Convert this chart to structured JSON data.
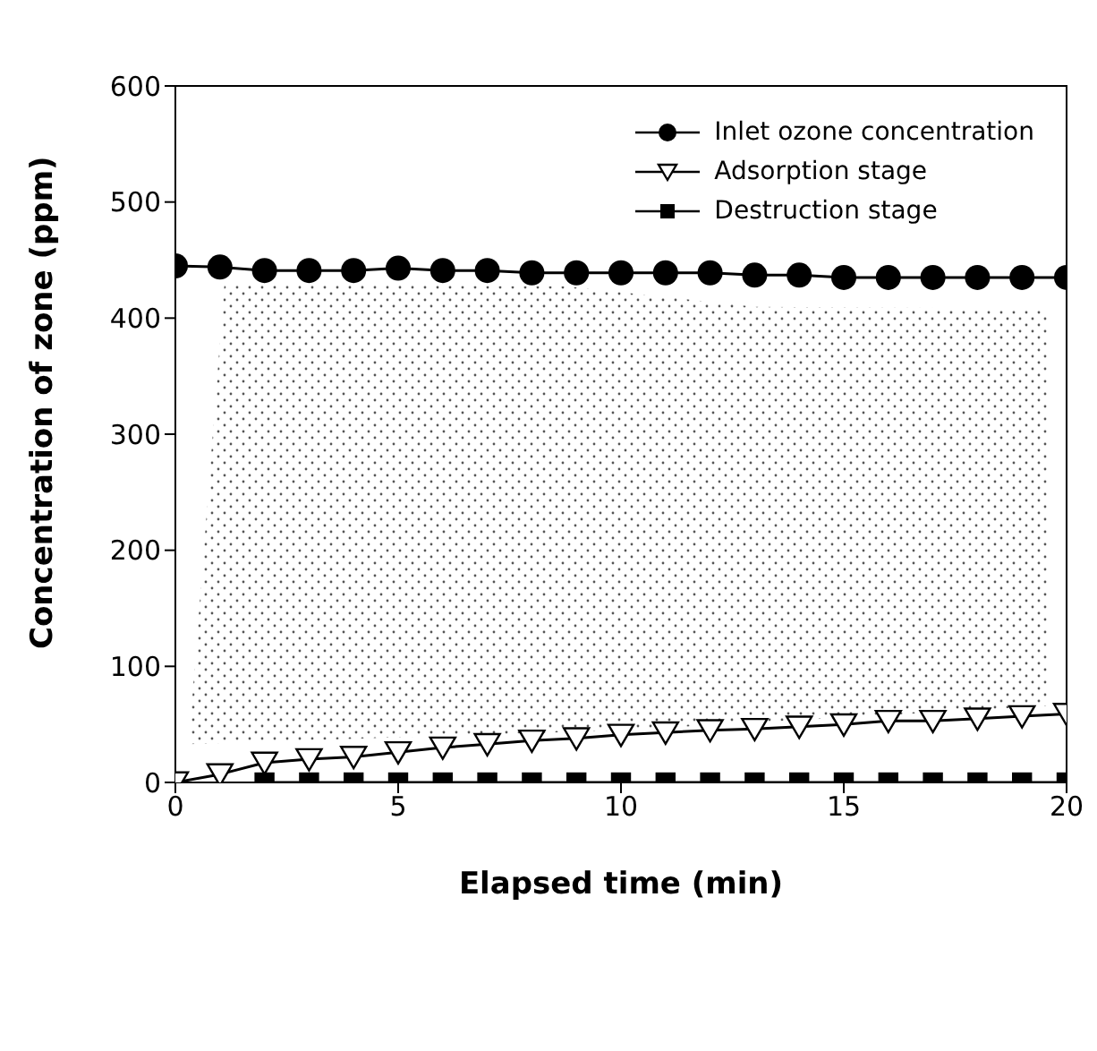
{
  "chart_data": {
    "type": "line",
    "xlabel": "Elapsed time (min)",
    "ylabel": "Concentration of zone (ppm)",
    "x": [
      0,
      1,
      2,
      3,
      4,
      5,
      6,
      7,
      8,
      9,
      10,
      11,
      12,
      13,
      14,
      15,
      16,
      17,
      18,
      19,
      20
    ],
    "series": [
      {
        "name": "Inlet ozone concentration",
        "color": "#000000",
        "marker": "circle",
        "values": [
          445,
          444,
          441,
          441,
          441,
          443,
          441,
          441,
          439,
          439,
          439,
          439,
          439,
          437,
          437,
          435,
          435,
          435,
          435,
          435,
          435
        ]
      },
      {
        "name": "Adsorption stage",
        "color": "#000000",
        "marker": "triangle",
        "values": [
          0,
          7,
          17,
          20,
          22,
          26,
          30,
          33,
          36,
          38,
          41,
          43,
          45,
          46,
          48,
          50,
          53,
          53,
          55,
          57,
          59
        ]
      },
      {
        "name": "Destruction stage",
        "color": "#000000",
        "marker": "square",
        "values": [
          null,
          null,
          0,
          0,
          0,
          0,
          0,
          0,
          0,
          0,
          0,
          0,
          0,
          0,
          0,
          0,
          0,
          0,
          0,
          0,
          0
        ]
      }
    ],
    "xlim": [
      0,
      20
    ],
    "xticks": [
      0,
      5,
      10,
      15,
      20
    ],
    "ylim": [
      0,
      600
    ],
    "yticks": [
      0,
      100,
      200,
      300,
      400,
      500,
      600
    ],
    "grid": false,
    "legend": "top right",
    "line_style": "solid"
  }
}
